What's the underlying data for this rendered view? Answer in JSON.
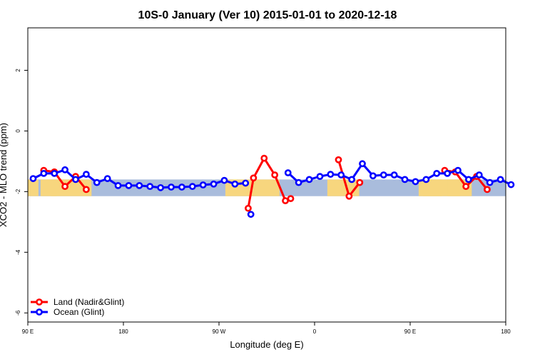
{
  "chart_data": {
    "type": "line",
    "title": "10S-0 January (Ver 10)   2015-01-01 to 2020-12-18",
    "xlabel": "Longitude (deg E)",
    "ylabel": "XCO2 - MLO trend (ppm)",
    "xlim": [
      0,
      360
    ],
    "ylim": [
      -6.3,
      3.4
    ],
    "x_ticks": [
      0,
      90,
      180,
      270,
      360
    ],
    "x_tick_labels": [
      "90 E",
      "180",
      "90 W",
      "0",
      "90 E",
      "180"
    ],
    "x_tick_positions": [
      0,
      90,
      180,
      270,
      360,
      450
    ],
    "xlim_deg_offset": 0,
    "y_ticks": [
      -6,
      -4,
      -2,
      0,
      2
    ],
    "y_tick_labels": [
      "-6",
      "-4",
      "-2",
      "0",
      "2"
    ],
    "band": {
      "ymin": -2.15,
      "ymax": -1.6,
      "ocean_color": "#a9bcdc",
      "land_color": "#f7d67e"
    },
    "land_segments": [
      [
        0,
        10
      ],
      [
        12,
        27
      ],
      [
        22,
        60
      ],
      [
        186,
        237
      ],
      [
        282,
        312
      ],
      [
        368,
        390
      ],
      [
        372,
        418
      ],
      [
        395,
        407
      ]
    ],
    "grid": false,
    "legend_position": "bottom-left",
    "series": [
      {
        "name": "Land (Nadir&Glint)",
        "color": "#ff0000",
        "segments": [
          {
            "x": [
              15,
              25,
              35,
              45,
              55
            ],
            "y": [
              -1.3,
              -1.35,
              -1.83,
              -1.5,
              -1.93
            ]
          },
          {
            "x": [
              207.5,
              212.5,
              222.5,
              232.5,
              242.5,
              247.5
            ],
            "y": [
              -2.55,
              -1.55,
              -0.9,
              -1.45,
              -2.3,
              -2.23
            ]
          },
          {
            "x": [
              292.5,
              302.5,
              312.5
            ],
            "y": [
              -0.95,
              -2.15,
              -1.7
            ]
          },
          {
            "x": [
              392.5,
              402.5,
              412.5,
              422.5,
              432.5
            ],
            "y": [
              -1.3,
              -1.35,
              -1.83,
              -1.5,
              -1.93
            ]
          }
        ]
      },
      {
        "name": "Ocean (Glint)",
        "color": "#0000ff",
        "segments": [
          {
            "x": [
              5,
              15,
              25,
              35,
              45,
              55,
              65,
              75,
              85,
              95,
              105,
              115,
              125,
              135,
              145,
              155,
              165,
              175,
              185,
              195,
              205
            ],
            "y": [
              -1.57,
              -1.4,
              -1.4,
              -1.28,
              -1.6,
              -1.43,
              -1.7,
              -1.57,
              -1.8,
              -1.8,
              -1.8,
              -1.83,
              -1.87,
              -1.85,
              -1.85,
              -1.83,
              -1.78,
              -1.75,
              -1.63,
              -1.75,
              -1.72
            ]
          },
          {
            "x": [
              210
            ],
            "y": [
              -2.75
            ]
          },
          {
            "x": [
              245,
              255,
              265,
              275,
              285,
              295,
              305,
              315,
              325,
              335,
              345,
              355,
              365,
              375,
              385,
              395,
              405,
              415,
              425,
              435,
              445,
              455
            ],
            "y": [
              -1.38,
              -1.7,
              -1.6,
              -1.5,
              -1.43,
              -1.45,
              -1.6,
              -1.08,
              -1.48,
              -1.45,
              -1.45,
              -1.6,
              -1.67,
              -1.6,
              -1.4,
              -1.4,
              -1.3,
              -1.6,
              -1.45,
              -1.7,
              -1.6,
              -1.77
            ]
          }
        ]
      }
    ]
  }
}
